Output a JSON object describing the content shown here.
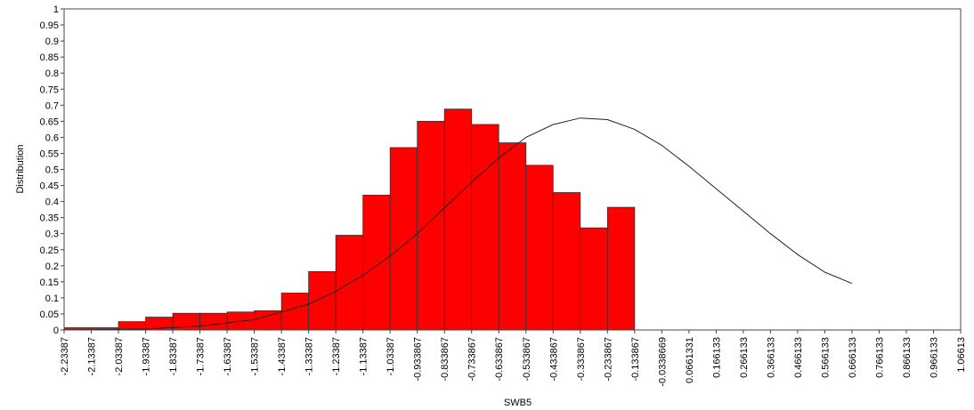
{
  "chart_data": {
    "type": "bar",
    "xlabel": "SWB5",
    "ylabel": "Distribution",
    "ylim": [
      0,
      1
    ],
    "y_ticks": [
      "0",
      "0.05",
      "0.1",
      "0.15",
      "0.2",
      "0.25",
      "0.3",
      "0.35",
      "0.4",
      "0.45",
      "0.5",
      "0.55",
      "0.6",
      "0.65",
      "0.7",
      "0.75",
      "0.8",
      "0.85",
      "0.9",
      "0.95",
      "1"
    ],
    "x_ticks": [
      "-2.23387",
      "-2.13387",
      "-2.03387",
      "-1.93387",
      "-1.83387",
      "-1.73387",
      "-1.63387",
      "-1.53387",
      "-1.43387",
      "-1.33387",
      "-1.23387",
      "-1.13387",
      "-1.03387",
      "-0.933867",
      "-0.833867",
      "-0.733867",
      "-0.633867",
      "-0.533867",
      "-0.433867",
      "-0.333867",
      "-0.233867",
      "-0.133867",
      "-0.0338669",
      "0.0661331",
      "0.166133",
      "0.266133",
      "0.366133",
      "0.466133",
      "0.566133",
      "0.666133",
      "0.766133",
      "0.866133",
      "0.966133",
      "1.06613"
    ],
    "bins": [
      {
        "start": -2.23387,
        "end": -2.03387,
        "value": 0.007
      },
      {
        "start": -2.03387,
        "end": -1.93387,
        "value": 0.026
      },
      {
        "start": -1.93387,
        "end": -1.83387,
        "value": 0.04
      },
      {
        "start": -1.83387,
        "end": -1.73387,
        "value": 0.052
      },
      {
        "start": -1.73387,
        "end": -1.63387,
        "value": 0.052
      },
      {
        "start": -1.63387,
        "end": -1.53387,
        "value": 0.056
      },
      {
        "start": -1.53387,
        "end": -1.43387,
        "value": 0.06
      },
      {
        "start": -1.43387,
        "end": -1.33387,
        "value": 0.115
      },
      {
        "start": -1.33387,
        "end": -1.23387,
        "value": 0.182
      },
      {
        "start": -1.23387,
        "end": -1.13387,
        "value": 0.295
      },
      {
        "start": -1.13387,
        "end": -1.03387,
        "value": 0.42
      },
      {
        "start": -1.03387,
        "end": -0.933867,
        "value": 0.568
      },
      {
        "start": -0.933867,
        "end": -0.833867,
        "value": 0.65
      },
      {
        "start": -0.833867,
        "end": -0.733867,
        "value": 0.688
      },
      {
        "start": -0.733867,
        "end": -0.633867,
        "value": 0.64
      },
      {
        "start": -0.633867,
        "end": -0.533867,
        "value": 0.583
      },
      {
        "start": -0.533867,
        "end": -0.433867,
        "value": 0.513
      },
      {
        "start": -0.433867,
        "end": -0.333867,
        "value": 0.428
      },
      {
        "start": -0.333867,
        "end": -0.233867,
        "value": 0.318
      },
      {
        "start": -0.233867,
        "end": -0.133867,
        "value": 0.382
      }
    ],
    "curve": {
      "type": "normal",
      "points": [
        [
          -2.23387,
          0.0
        ],
        [
          -1.93387,
          0.003
        ],
        [
          -1.73387,
          0.012
        ],
        [
          -1.53387,
          0.032
        ],
        [
          -1.33387,
          0.08
        ],
        [
          -1.23387,
          0.12
        ],
        [
          -1.13387,
          0.17
        ],
        [
          -1.03387,
          0.23
        ],
        [
          -0.933867,
          0.3
        ],
        [
          -0.833867,
          0.38
        ],
        [
          -0.733867,
          0.46
        ],
        [
          -0.633867,
          0.535
        ],
        [
          -0.533867,
          0.6
        ],
        [
          -0.433867,
          0.64
        ],
        [
          -0.333867,
          0.66
        ],
        [
          -0.233867,
          0.655
        ],
        [
          -0.133867,
          0.625
        ],
        [
          -0.0338669,
          0.575
        ],
        [
          0.0661331,
          0.51
        ],
        [
          0.166133,
          0.44
        ],
        [
          0.266133,
          0.37
        ],
        [
          0.366133,
          0.3
        ],
        [
          0.466133,
          0.235
        ],
        [
          0.566133,
          0.18
        ],
        [
          0.666133,
          0.145
        ]
      ]
    },
    "bar_color": "#ff0000",
    "grid": false
  }
}
